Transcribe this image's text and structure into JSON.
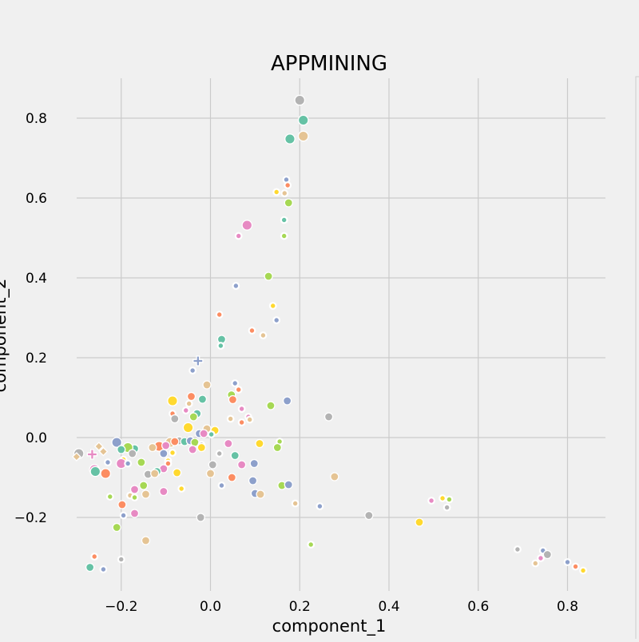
{
  "chart_data": {
    "type": "scatter",
    "title": "APPMINING",
    "xlabel": "component_1",
    "ylabel": "component_2",
    "xlim": [
      -0.34,
      0.89
    ],
    "ylim": [
      -0.39,
      0.9
    ],
    "xticks": [
      -0.2,
      0.0,
      0.2,
      0.4,
      0.6,
      0.8
    ],
    "yticks": [
      -0.2,
      0.0,
      0.2,
      0.4,
      0.6,
      0.8
    ],
    "xtick_labels": [
      "−0.2",
      "0.0",
      "0.2",
      "0.4",
      "0.6",
      "0.8"
    ],
    "ytick_labels": [
      "−0.2",
      "0.0",
      "0.2",
      "0.4",
      "0.6",
      "0.8"
    ],
    "grid": true,
    "legend": "right, clipped",
    "colors": [
      "#66c2a5",
      "#fc8d62",
      "#8da0cb",
      "#e78ac3",
      "#a6d854",
      "#ffd92f",
      "#e5c494",
      "#b3b3b3"
    ],
    "points": [
      {
        "x": 0.2,
        "y": 0.845,
        "c": 7,
        "s": 2
      },
      {
        "x": 0.208,
        "y": 0.795,
        "c": 0,
        "s": 2
      },
      {
        "x": 0.208,
        "y": 0.755,
        "c": 6,
        "s": 2
      },
      {
        "x": 0.178,
        "y": 0.748,
        "c": 0,
        "s": 2
      },
      {
        "x": 0.17,
        "y": 0.646,
        "c": 2,
        "s": 0
      },
      {
        "x": 0.173,
        "y": 0.632,
        "c": 1,
        "s": 0
      },
      {
        "x": 0.148,
        "y": 0.615,
        "c": 5,
        "s": 0
      },
      {
        "x": 0.166,
        "y": 0.612,
        "c": 6,
        "s": 0
      },
      {
        "x": 0.175,
        "y": 0.588,
        "c": 4,
        "s": 1
      },
      {
        "x": 0.165,
        "y": 0.545,
        "c": 0,
        "s": 0
      },
      {
        "x": 0.082,
        "y": 0.532,
        "c": 3,
        "s": 2
      },
      {
        "x": 0.063,
        "y": 0.505,
        "c": 3,
        "s": 0
      },
      {
        "x": 0.165,
        "y": 0.505,
        "c": 4,
        "s": 0
      },
      {
        "x": 0.13,
        "y": 0.404,
        "c": 4,
        "s": 1
      },
      {
        "x": 0.057,
        "y": 0.38,
        "c": 2,
        "s": 0
      },
      {
        "x": 0.14,
        "y": 0.33,
        "c": 5,
        "s": 0
      },
      {
        "x": 0.02,
        "y": 0.308,
        "c": 1,
        "s": 0
      },
      {
        "x": 0.148,
        "y": 0.294,
        "c": 2,
        "s": 0
      },
      {
        "x": 0.093,
        "y": 0.268,
        "c": 1,
        "s": 0
      },
      {
        "x": 0.118,
        "y": 0.256,
        "c": 6,
        "s": 0
      },
      {
        "x": 0.025,
        "y": 0.246,
        "c": 0,
        "s": 1
      },
      {
        "x": 0.023,
        "y": 0.23,
        "c": 0,
        "s": 0
      },
      {
        "x": -0.028,
        "y": 0.192,
        "c": 2,
        "s": 4
      },
      {
        "x": -0.04,
        "y": 0.168,
        "c": 2,
        "s": 0
      },
      {
        "x": 0.055,
        "y": 0.136,
        "c": 2,
        "s": 0
      },
      {
        "x": -0.008,
        "y": 0.132,
        "c": 6,
        "s": 1
      },
      {
        "x": 0.063,
        "y": 0.12,
        "c": 1,
        "s": 0
      },
      {
        "x": 0.047,
        "y": 0.107,
        "c": 4,
        "s": 1
      },
      {
        "x": -0.043,
        "y": 0.103,
        "c": 1,
        "s": 1
      },
      {
        "x": -0.018,
        "y": 0.096,
        "c": 0,
        "s": 1
      },
      {
        "x": 0.05,
        "y": 0.095,
        "c": 1,
        "s": 1
      },
      {
        "x": -0.085,
        "y": 0.092,
        "c": 5,
        "s": 2
      },
      {
        "x": 0.172,
        "y": 0.092,
        "c": 2,
        "s": 1
      },
      {
        "x": 0.135,
        "y": 0.08,
        "c": 4,
        "s": 1
      },
      {
        "x": -0.048,
        "y": 0.085,
        "c": 6,
        "s": 0
      },
      {
        "x": -0.03,
        "y": 0.06,
        "c": 0,
        "s": 1
      },
      {
        "x": -0.085,
        "y": 0.06,
        "c": 1,
        "s": 0
      },
      {
        "x": -0.055,
        "y": 0.068,
        "c": 3,
        "s": 0
      },
      {
        "x": 0.07,
        "y": 0.072,
        "c": 3,
        "s": 0
      },
      {
        "x": 0.265,
        "y": 0.052,
        "c": 7,
        "s": 1
      },
      {
        "x": -0.08,
        "y": 0.047,
        "c": 7,
        "s": 1
      },
      {
        "x": -0.038,
        "y": 0.052,
        "c": 4,
        "s": 1
      },
      {
        "x": 0.045,
        "y": 0.047,
        "c": 6,
        "s": 0
      },
      {
        "x": 0.085,
        "y": 0.052,
        "c": 3,
        "s": 0
      },
      {
        "x": 0.07,
        "y": 0.038,
        "c": 1,
        "s": 0
      },
      {
        "x": 0.088,
        "y": 0.045,
        "c": 6,
        "s": 0
      },
      {
        "x": -0.05,
        "y": 0.025,
        "c": 5,
        "s": 2
      },
      {
        "x": -0.008,
        "y": 0.022,
        "c": 6,
        "s": 1
      },
      {
        "x": 0.01,
        "y": 0.018,
        "c": 5,
        "s": 1
      },
      {
        "x": -0.025,
        "y": 0.01,
        "c": 2,
        "s": 1
      },
      {
        "x": -0.015,
        "y": 0.01,
        "c": 3,
        "s": 1
      },
      {
        "x": 0.002,
        "y": 0.008,
        "c": 0,
        "s": 0
      },
      {
        "x": -0.07,
        "y": -0.008,
        "c": 7,
        "s": 1
      },
      {
        "x": -0.058,
        "y": -0.01,
        "c": 0,
        "s": 1
      },
      {
        "x": -0.045,
        "y": -0.008,
        "c": 2,
        "s": 1
      },
      {
        "x": -0.035,
        "y": -0.012,
        "c": 4,
        "s": 1
      },
      {
        "x": -0.09,
        "y": -0.012,
        "c": 6,
        "s": 2
      },
      {
        "x": -0.08,
        "y": -0.01,
        "c": 1,
        "s": 1
      },
      {
        "x": -0.02,
        "y": -0.018,
        "c": 7,
        "s": 0
      },
      {
        "x": 0.04,
        "y": -0.015,
        "c": 3,
        "s": 1
      },
      {
        "x": 0.11,
        "y": -0.015,
        "c": 5,
        "s": 1
      },
      {
        "x": 0.155,
        "y": -0.01,
        "c": 4,
        "s": 0
      },
      {
        "x": -0.21,
        "y": -0.012,
        "c": 2,
        "s": 2
      },
      {
        "x": -0.25,
        "y": -0.022,
        "c": 6,
        "s": 3
      },
      {
        "x": -0.115,
        "y": -0.022,
        "c": 1,
        "s": 2
      },
      {
        "x": -0.1,
        "y": -0.02,
        "c": 3,
        "s": 1
      },
      {
        "x": -0.13,
        "y": -0.025,
        "c": 6,
        "s": 1
      },
      {
        "x": -0.17,
        "y": -0.028,
        "c": 0,
        "s": 1
      },
      {
        "x": -0.185,
        "y": -0.025,
        "c": 4,
        "s": 2
      },
      {
        "x": -0.2,
        "y": -0.03,
        "c": 0,
        "s": 1
      },
      {
        "x": -0.04,
        "y": -0.03,
        "c": 3,
        "s": 1
      },
      {
        "x": -0.02,
        "y": -0.025,
        "c": 5,
        "s": 1
      },
      {
        "x": 0.15,
        "y": -0.025,
        "c": 4,
        "s": 1
      },
      {
        "x": -0.24,
        "y": -0.035,
        "c": 6,
        "s": 3
      },
      {
        "x": -0.175,
        "y": -0.04,
        "c": 7,
        "s": 1
      },
      {
        "x": -0.105,
        "y": -0.04,
        "c": 2,
        "s": 1
      },
      {
        "x": -0.085,
        "y": -0.038,
        "c": 5,
        "s": 0
      },
      {
        "x": 0.02,
        "y": -0.04,
        "c": 7,
        "s": 0
      },
      {
        "x": 0.055,
        "y": -0.045,
        "c": 0,
        "s": 1
      },
      {
        "x": -0.295,
        "y": -0.04,
        "c": 7,
        "s": 2
      },
      {
        "x": -0.265,
        "y": -0.042,
        "c": 3,
        "s": 4
      },
      {
        "x": -0.3,
        "y": -0.048,
        "c": 6,
        "s": 3
      },
      {
        "x": -0.195,
        "y": -0.055,
        "c": 5,
        "s": 0
      },
      {
        "x": -0.095,
        "y": -0.058,
        "c": 5,
        "s": 0
      },
      {
        "x": -0.2,
        "y": -0.065,
        "c": 3,
        "s": 2
      },
      {
        "x": -0.185,
        "y": -0.065,
        "c": 2,
        "s": 0
      },
      {
        "x": -0.155,
        "y": -0.062,
        "c": 4,
        "s": 1
      },
      {
        "x": -0.23,
        "y": -0.062,
        "c": 2,
        "s": 0
      },
      {
        "x": -0.095,
        "y": -0.065,
        "c": 1,
        "s": 0
      },
      {
        "x": 0.005,
        "y": -0.068,
        "c": 7,
        "s": 1
      },
      {
        "x": 0.07,
        "y": -0.068,
        "c": 3,
        "s": 1
      },
      {
        "x": 0.098,
        "y": -0.065,
        "c": 2,
        "s": 1
      },
      {
        "x": -0.26,
        "y": -0.08,
        "c": 3,
        "s": 2
      },
      {
        "x": -0.258,
        "y": -0.085,
        "c": 0,
        "s": 2
      },
      {
        "x": -0.235,
        "y": -0.09,
        "c": 1,
        "s": 2
      },
      {
        "x": -0.105,
        "y": -0.078,
        "c": 3,
        "s": 1
      },
      {
        "x": -0.12,
        "y": -0.085,
        "c": 0,
        "s": 1
      },
      {
        "x": -0.075,
        "y": -0.088,
        "c": 5,
        "s": 1
      },
      {
        "x": -0.14,
        "y": -0.092,
        "c": 7,
        "s": 1
      },
      {
        "x": -0.125,
        "y": -0.09,
        "c": 6,
        "s": 1
      },
      {
        "x": 0.0,
        "y": -0.09,
        "c": 6,
        "s": 1
      },
      {
        "x": 0.048,
        "y": -0.1,
        "c": 1,
        "s": 1
      },
      {
        "x": 0.278,
        "y": -0.098,
        "c": 6,
        "s": 1
      },
      {
        "x": 0.095,
        "y": -0.108,
        "c": 2,
        "s": 1
      },
      {
        "x": 0.16,
        "y": -0.12,
        "c": 4,
        "s": 1
      },
      {
        "x": 0.175,
        "y": -0.118,
        "c": 2,
        "s": 1
      },
      {
        "x": -0.15,
        "y": -0.12,
        "c": 4,
        "s": 1
      },
      {
        "x": -0.17,
        "y": -0.13,
        "c": 3,
        "s": 1
      },
      {
        "x": -0.105,
        "y": -0.135,
        "c": 3,
        "s": 1
      },
      {
        "x": -0.065,
        "y": -0.128,
        "c": 5,
        "s": 0
      },
      {
        "x": -0.145,
        "y": -0.142,
        "c": 6,
        "s": 1
      },
      {
        "x": 0.1,
        "y": -0.14,
        "c": 2,
        "s": 1
      },
      {
        "x": 0.112,
        "y": -0.142,
        "c": 6,
        "s": 1
      },
      {
        "x": -0.225,
        "y": -0.148,
        "c": 4,
        "s": 0
      },
      {
        "x": -0.18,
        "y": -0.145,
        "c": 6,
        "s": 0
      },
      {
        "x": -0.17,
        "y": -0.15,
        "c": 4,
        "s": 0
      },
      {
        "x": 0.025,
        "y": -0.12,
        "c": 2,
        "s": 0
      },
      {
        "x": 0.19,
        "y": -0.165,
        "c": 6,
        "s": 0
      },
      {
        "x": 0.245,
        "y": -0.172,
        "c": 2,
        "s": 0
      },
      {
        "x": -0.198,
        "y": -0.168,
        "c": 1,
        "s": 1
      },
      {
        "x": -0.17,
        "y": -0.19,
        "c": 3,
        "s": 1
      },
      {
        "x": -0.195,
        "y": -0.195,
        "c": 2,
        "s": 0
      },
      {
        "x": -0.022,
        "y": -0.2,
        "c": 7,
        "s": 1
      },
      {
        "x": 0.355,
        "y": -0.195,
        "c": 7,
        "s": 1
      },
      {
        "x": -0.21,
        "y": -0.225,
        "c": 4,
        "s": 1
      },
      {
        "x": 0.468,
        "y": -0.212,
        "c": 5,
        "s": 1
      },
      {
        "x": -0.145,
        "y": -0.258,
        "c": 6,
        "s": 1
      },
      {
        "x": 0.225,
        "y": -0.268,
        "c": 4,
        "s": 0
      },
      {
        "x": 0.495,
        "y": -0.158,
        "c": 3,
        "s": 0
      },
      {
        "x": 0.52,
        "y": -0.152,
        "c": 5,
        "s": 0
      },
      {
        "x": 0.535,
        "y": -0.155,
        "c": 4,
        "s": 0
      },
      {
        "x": 0.53,
        "y": -0.175,
        "c": 7,
        "s": 0
      },
      {
        "x": 0.688,
        "y": -0.28,
        "c": 7,
        "s": 0
      },
      {
        "x": 0.745,
        "y": -0.283,
        "c": 2,
        "s": 0
      },
      {
        "x": 0.755,
        "y": -0.293,
        "c": 7,
        "s": 1
      },
      {
        "x": 0.74,
        "y": -0.302,
        "c": 3,
        "s": 0
      },
      {
        "x": 0.728,
        "y": -0.315,
        "c": 6,
        "s": 0
      },
      {
        "x": 0.8,
        "y": -0.312,
        "c": 2,
        "s": 0
      },
      {
        "x": 0.818,
        "y": -0.323,
        "c": 1,
        "s": 0
      },
      {
        "x": 0.835,
        "y": -0.333,
        "c": 5,
        "s": 0
      },
      {
        "x": -0.26,
        "y": -0.298,
        "c": 1,
        "s": 0
      },
      {
        "x": -0.2,
        "y": -0.305,
        "c": 7,
        "s": 0
      },
      {
        "x": -0.27,
        "y": -0.325,
        "c": 0,
        "s": 1
      },
      {
        "x": -0.24,
        "y": -0.33,
        "c": 2,
        "s": 0
      }
    ]
  }
}
